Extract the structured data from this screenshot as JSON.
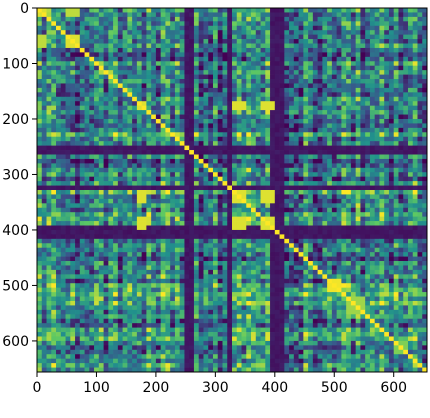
{
  "chart_data": {
    "type": "heatmap",
    "title": "",
    "xlabel": "",
    "ylabel": "",
    "n_rows": 656,
    "n_cols": 656,
    "xlim": [
      0,
      656
    ],
    "ylim": [
      656,
      0
    ],
    "x_ticks": [
      {
        "value": 0,
        "label": "0"
      },
      {
        "value": 100,
        "label": "100"
      },
      {
        "value": 200,
        "label": "200"
      },
      {
        "value": 300,
        "label": "300"
      },
      {
        "value": 400,
        "label": "400"
      },
      {
        "value": 500,
        "label": "500"
      },
      {
        "value": 600,
        "label": "600"
      }
    ],
    "y_ticks": [
      {
        "value": 0,
        "label": "0"
      },
      {
        "value": 100,
        "label": "100"
      },
      {
        "value": 200,
        "label": "200"
      },
      {
        "value": 300,
        "label": "300"
      },
      {
        "value": 400,
        "label": "400"
      },
      {
        "value": 500,
        "label": "500"
      },
      {
        "value": 600,
        "label": "600"
      }
    ],
    "colormap": "viridis",
    "colormap_stops": [
      "#440154",
      "#3b528b",
      "#21918c",
      "#5ec962",
      "#fde725"
    ],
    "value_range": [
      0,
      1
    ],
    "diagonal": 1.0,
    "grid": false,
    "legend": "none",
    "low_value_bands": [
      {
        "start": 252,
        "end": 262
      },
      {
        "start": 262,
        "end": 268
      },
      {
        "start": 320,
        "end": 330
      },
      {
        "start": 395,
        "end": 412
      },
      {
        "start": 408,
        "end": 418
      }
    ],
    "blocks": [
      {
        "start": 0,
        "end": 60,
        "level": 0.45
      },
      {
        "start": 60,
        "end": 160,
        "level": 0.35
      },
      {
        "start": 160,
        "end": 250,
        "level": 0.55
      },
      {
        "start": 250,
        "end": 330,
        "level": 0.3
      },
      {
        "start": 330,
        "end": 410,
        "level": 0.55
      },
      {
        "start": 410,
        "end": 500,
        "level": 0.4
      },
      {
        "start": 500,
        "end": 560,
        "level": 0.5
      },
      {
        "start": 560,
        "end": 656,
        "level": 0.42
      }
    ],
    "hot_spots": [
      {
        "row_center": 5,
        "col_center": 5,
        "size": 8,
        "value": 0.95
      },
      {
        "row_center": 5,
        "col_center": 60,
        "size": 10,
        "value": 0.9
      },
      {
        "row_center": 60,
        "col_center": 5,
        "size": 10,
        "value": 0.9
      },
      {
        "row_center": 60,
        "col_center": 60,
        "size": 12,
        "value": 0.95
      },
      {
        "row_center": 175,
        "col_center": 175,
        "size": 14,
        "value": 0.95
      },
      {
        "row_center": 175,
        "col_center": 340,
        "size": 14,
        "value": 0.95
      },
      {
        "row_center": 175,
        "col_center": 390,
        "size": 14,
        "value": 0.95
      },
      {
        "row_center": 340,
        "col_center": 175,
        "size": 14,
        "value": 0.95
      },
      {
        "row_center": 340,
        "col_center": 340,
        "size": 14,
        "value": 0.95
      },
      {
        "row_center": 340,
        "col_center": 390,
        "size": 14,
        "value": 0.95
      },
      {
        "row_center": 390,
        "col_center": 175,
        "size": 14,
        "value": 0.95
      },
      {
        "row_center": 390,
        "col_center": 340,
        "size": 14,
        "value": 0.95
      },
      {
        "row_center": 390,
        "col_center": 390,
        "size": 14,
        "value": 0.95
      },
      {
        "row_center": 500,
        "col_center": 500,
        "size": 20,
        "value": 0.98
      },
      {
        "row_center": 535,
        "col_center": 535,
        "size": 30,
        "value": 0.85
      },
      {
        "row_center": 610,
        "col_center": 610,
        "size": 16,
        "value": 0.8
      }
    ]
  }
}
